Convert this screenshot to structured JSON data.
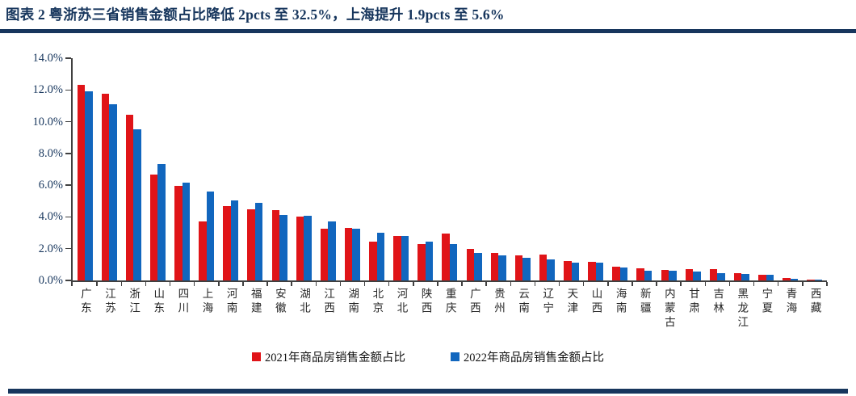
{
  "title": "图表 2  粤浙苏三省销售金额占比降低 2pcts 至 32.5%，上海提升 1.9pcts 至 5.6%",
  "colors": {
    "navy": "#17365D",
    "red_2021": "#E01418",
    "blue_2022": "#1166BE",
    "axis": "#404040"
  },
  "chart_data": {
    "type": "bar",
    "title": "粤浙苏三省销售金额占比降低 2pcts 至 32.5%，上海提升 1.9pcts 至 5.6%",
    "categories": [
      "广东",
      "江苏",
      "浙江",
      "山东",
      "四川",
      "上海",
      "河南",
      "福建",
      "安徽",
      "湖北",
      "江西",
      "湖南",
      "北京",
      "河北",
      "陕西",
      "重庆",
      "广西",
      "贵州",
      "云南",
      "辽宁",
      "天津",
      "山西",
      "海南",
      "新疆",
      "内蒙古",
      "甘肃",
      "吉林",
      "黑龙江",
      "宁夏",
      "青海",
      "西藏"
    ],
    "series": [
      {
        "name": "2021年商品房销售金额占比",
        "color_key": "red_2021",
        "values": [
          12.3,
          11.75,
          10.45,
          6.65,
          5.95,
          3.7,
          4.7,
          4.5,
          4.45,
          4.0,
          3.25,
          3.3,
          2.45,
          2.8,
          2.3,
          2.95,
          2.0,
          1.75,
          1.6,
          1.65,
          1.2,
          1.15,
          0.85,
          0.75,
          0.65,
          0.7,
          0.7,
          0.45,
          0.35,
          0.15,
          0.05
        ]
      },
      {
        "name": "2022年商品房销售金额占比",
        "color_key": "blue_2022",
        "values": [
          11.9,
          11.1,
          9.5,
          7.35,
          6.15,
          5.6,
          5.05,
          4.9,
          4.1,
          4.05,
          3.7,
          3.25,
          3.0,
          2.8,
          2.45,
          2.3,
          1.75,
          1.6,
          1.45,
          1.3,
          1.1,
          1.1,
          0.8,
          0.6,
          0.62,
          0.55,
          0.48,
          0.4,
          0.35,
          0.1,
          0.03
        ]
      }
    ],
    "xlabel": "",
    "ylabel": "",
    "y_ticks": [
      "14.0%",
      "12.0%",
      "10.0%",
      "8.0%",
      "6.0%",
      "4.0%",
      "2.0%",
      "0.0%"
    ],
    "ylim": [
      0,
      14
    ],
    "grid": false,
    "legend_position": "bottom"
  }
}
